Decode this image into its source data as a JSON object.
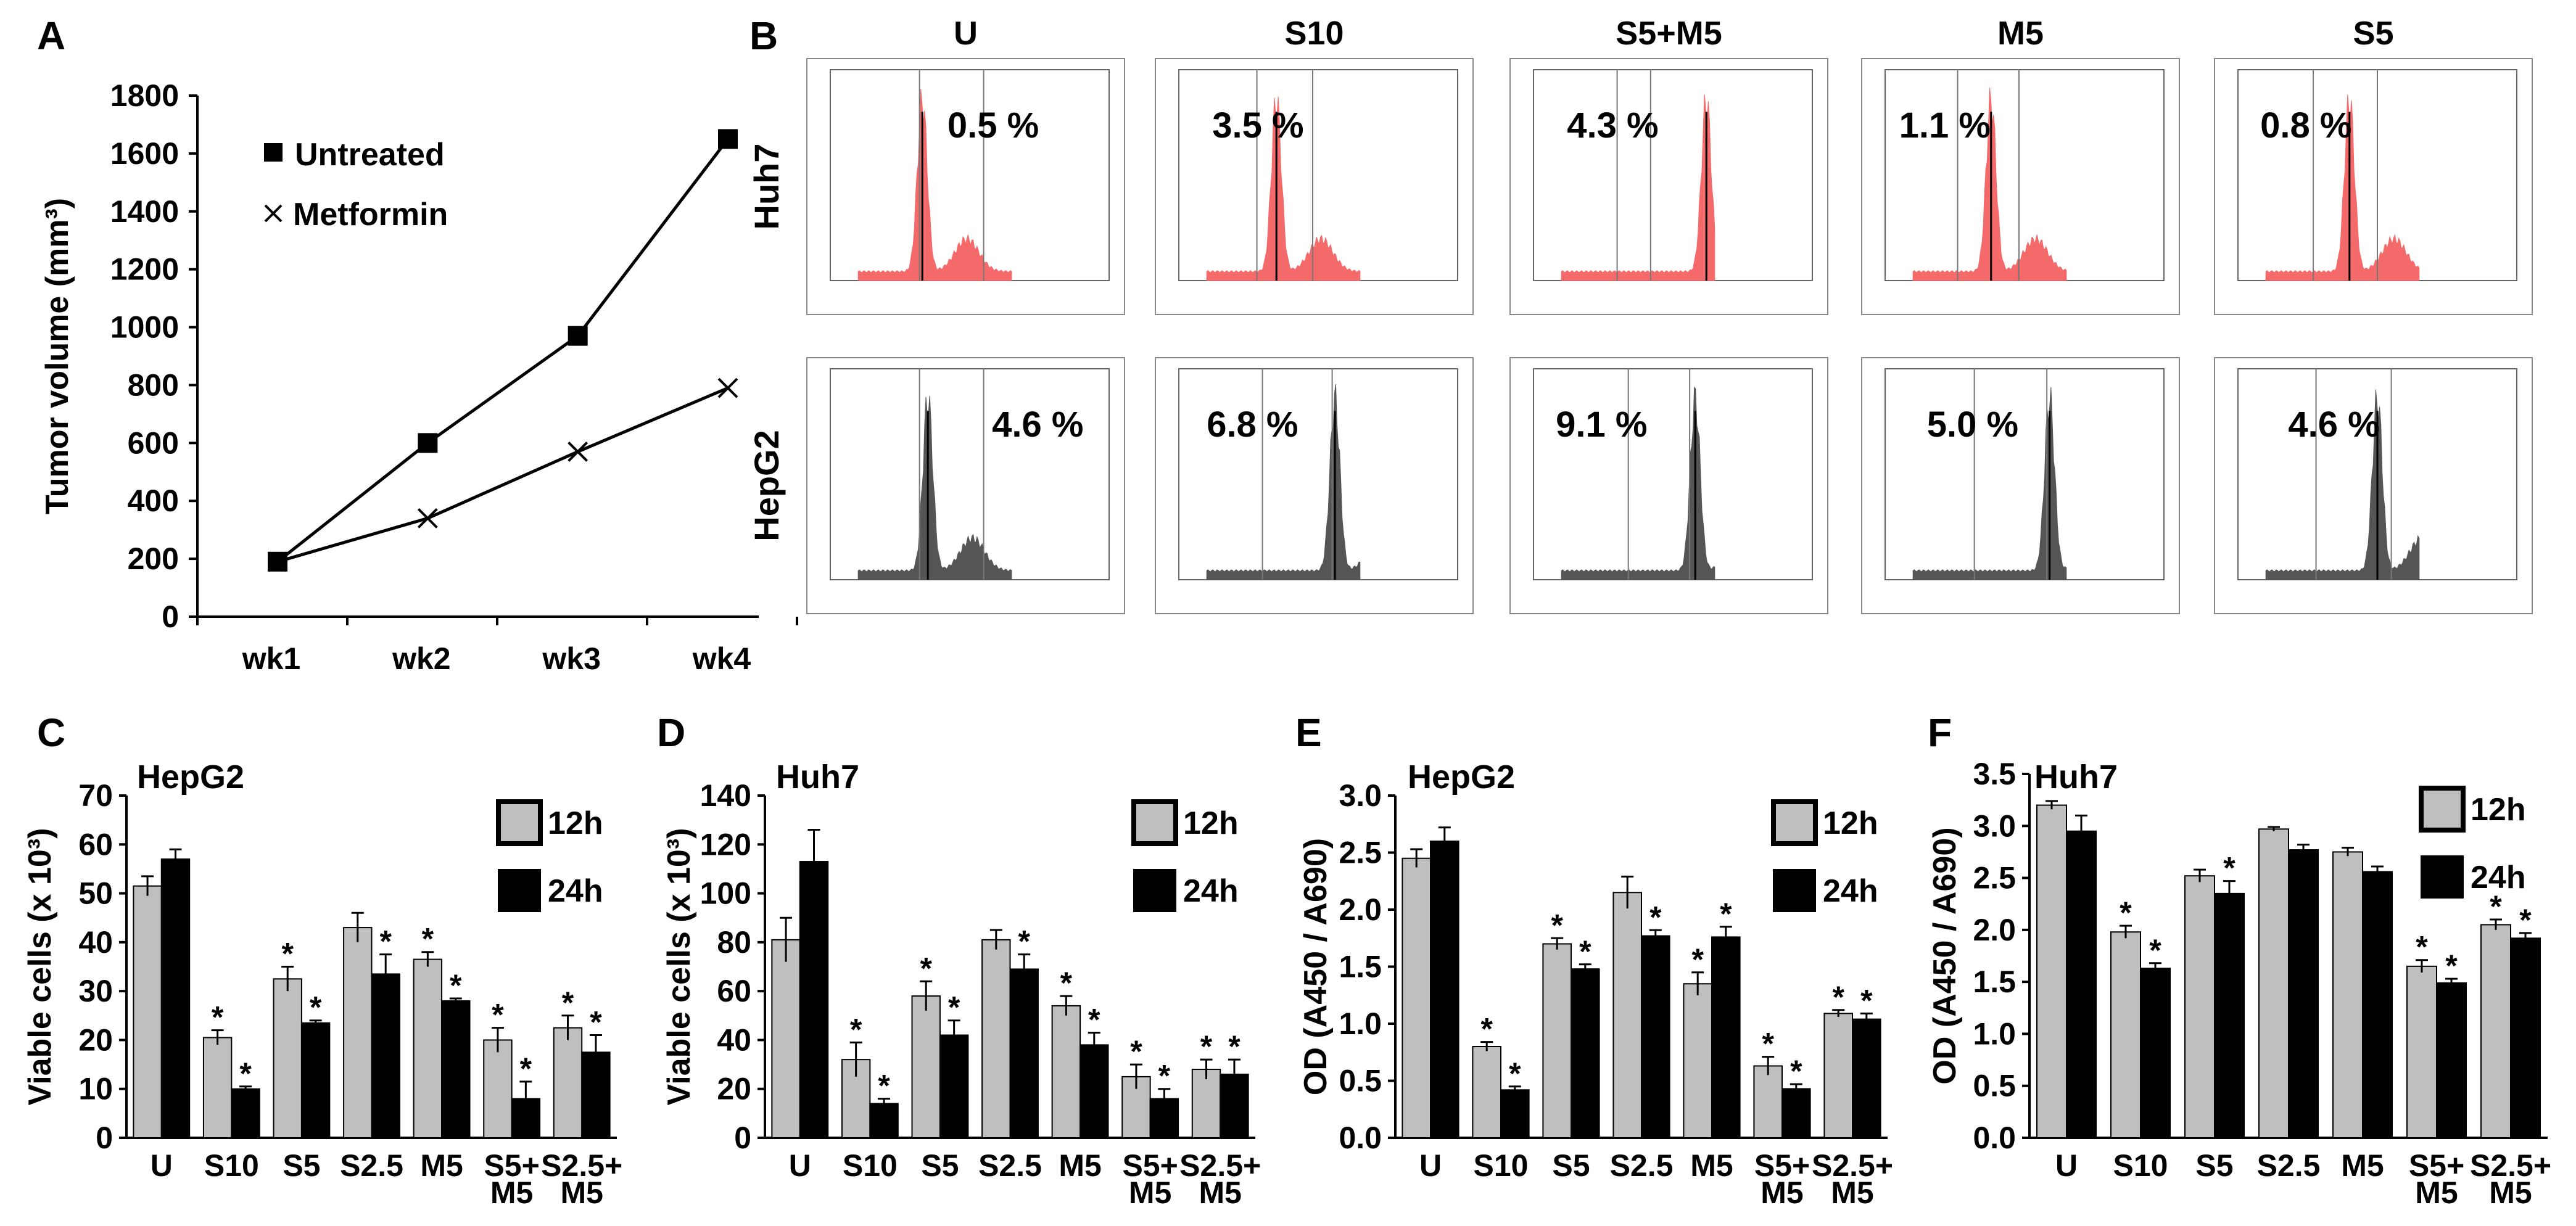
{
  "panel_labels": [
    "A",
    "B",
    "C",
    "D",
    "E",
    "F"
  ],
  "colors": {
    "gray": "#bfbfbf",
    "black": "#000000",
    "red": "#f46a6a",
    "histgray": "#555555"
  },
  "chart_data": [
    {
      "panel": "A",
      "type": "line",
      "title": "",
      "xlabel": "",
      "ylabel": "Tumor volume (mm³)",
      "categories": [
        "wk1",
        "wk2",
        "wk3",
        "wk4"
      ],
      "ylim": [
        0,
        1800
      ],
      "yticks": [
        "0",
        "200",
        "400",
        "600",
        "800",
        "1000",
        "1200",
        "1400",
        "1600",
        "1800"
      ],
      "legend_position": "top-left",
      "series": [
        {
          "name": "Untreated",
          "marker": "square",
          "values": [
            190,
            600,
            970,
            1650
          ]
        },
        {
          "name": "Metformin",
          "marker": "x",
          "values": [
            190,
            340,
            570,
            790
          ]
        }
      ]
    },
    {
      "panel": "B",
      "type": "histogram-grid",
      "columns": [
        "U",
        "S10",
        "S5+M5",
        "M5",
        "S5"
      ],
      "rows": [
        {
          "name": "Huh7",
          "color": "#f46a6a",
          "percents": [
            "0.5 %",
            "3.5 %",
            "4.3 %",
            "1.1 %",
            "0.8 %"
          ]
        },
        {
          "name": "HepG2",
          "color": "#555555",
          "percents": [
            "4.6 %",
            "6.8 %",
            "9.1 %",
            "5.0 %",
            "4.6 %"
          ]
        }
      ]
    },
    {
      "panel": "C",
      "type": "bar",
      "title": "HepG2",
      "ylabel": "Viable cells (x 10³)",
      "ylim": [
        0,
        70
      ],
      "yticks": [
        "0",
        "10",
        "20",
        "30",
        "40",
        "50",
        "60",
        "70"
      ],
      "categories": [
        [
          "U"
        ],
        [
          "S10"
        ],
        [
          "S5"
        ],
        [
          "S2.5"
        ],
        [
          "M5"
        ],
        [
          "S5+",
          "M5"
        ],
        [
          "S2.5+",
          "M5"
        ]
      ],
      "series": [
        {
          "name": "12h",
          "values": [
            51.5,
            20.5,
            32.5,
            43,
            36.5,
            20,
            22.5
          ],
          "errors": [
            2,
            1.5,
            2.5,
            3,
            1.5,
            2.5,
            2.5
          ],
          "sig": [
            false,
            true,
            true,
            false,
            true,
            true,
            true
          ]
        },
        {
          "name": "24h",
          "values": [
            57,
            10,
            23.5,
            33.5,
            28,
            8,
            17.5
          ],
          "errors": [
            2,
            0.5,
            0.5,
            4,
            0.5,
            3.5,
            3.5
          ],
          "sig": [
            false,
            true,
            true,
            true,
            true,
            true,
            true
          ]
        }
      ]
    },
    {
      "panel": "D",
      "type": "bar",
      "title": "Huh7",
      "ylabel": "Viable cells (x 10³)",
      "ylim": [
        0,
        140
      ],
      "yticks": [
        "0",
        "20",
        "40",
        "60",
        "80",
        "100",
        "120",
        "140"
      ],
      "categories": [
        [
          "U"
        ],
        [
          "S10"
        ],
        [
          "S5"
        ],
        [
          "S2.5"
        ],
        [
          "M5"
        ],
        [
          "S5+",
          "M5"
        ],
        [
          "S2.5+",
          "M5"
        ]
      ],
      "series": [
        {
          "name": "12h",
          "values": [
            81,
            32,
            58,
            81,
            54,
            25,
            28
          ],
          "errors": [
            9,
            7,
            6,
            4,
            4,
            5,
            4
          ],
          "sig": [
            false,
            true,
            true,
            false,
            true,
            true,
            true
          ]
        },
        {
          "name": "24h",
          "values": [
            113,
            14,
            42,
            69,
            38,
            16,
            26
          ],
          "errors": [
            13,
            2,
            6,
            6,
            5,
            4,
            6
          ],
          "sig": [
            false,
            true,
            true,
            true,
            true,
            true,
            true
          ]
        }
      ]
    },
    {
      "panel": "E",
      "type": "bar",
      "title": "HepG2",
      "ylabel": "OD (A450 / A690)",
      "ylim": [
        0,
        3
      ],
      "yticks": [
        "0.0",
        "0.5",
        "1.0",
        "1.5",
        "2.0",
        "2.5",
        "3.0"
      ],
      "categories": [
        [
          "U"
        ],
        [
          "S10"
        ],
        [
          "S5"
        ],
        [
          "S2.5"
        ],
        [
          "M5"
        ],
        [
          "S5+",
          "M5"
        ],
        [
          "S2.5+",
          "M5"
        ]
      ],
      "series": [
        {
          "name": "12h",
          "values": [
            2.45,
            0.8,
            1.7,
            2.15,
            1.35,
            0.63,
            1.09
          ],
          "errors": [
            0.08,
            0.04,
            0.05,
            0.14,
            0.1,
            0.08,
            0.03
          ],
          "sig": [
            false,
            true,
            true,
            false,
            true,
            true,
            true
          ]
        },
        {
          "name": "24h",
          "values": [
            2.6,
            0.42,
            1.48,
            1.77,
            1.76,
            0.43,
            1.04
          ],
          "errors": [
            0.12,
            0.03,
            0.04,
            0.05,
            0.09,
            0.04,
            0.05
          ],
          "sig": [
            false,
            true,
            true,
            true,
            true,
            true,
            true
          ]
        }
      ]
    },
    {
      "panel": "F",
      "type": "bar",
      "title": "Huh7",
      "ylabel": "OD (A450 / A690)",
      "ylim": [
        0,
        3.5
      ],
      "yticks": [
        "0.0",
        "0.5",
        "1.0",
        "1.5",
        "2.0",
        "2.5",
        "3.0",
        "3.5"
      ],
      "categories": [
        [
          "U"
        ],
        [
          "S10"
        ],
        [
          "S5"
        ],
        [
          "S2.5"
        ],
        [
          "M5"
        ],
        [
          "S5+",
          "M5"
        ],
        [
          "S2.5+",
          "M5"
        ]
      ],
      "series": [
        {
          "name": "12h",
          "values": [
            3.2,
            1.98,
            2.52,
            2.97,
            2.75,
            1.65,
            2.05
          ],
          "errors": [
            0.04,
            0.06,
            0.06,
            0.02,
            0.04,
            0.06,
            0.05
          ],
          "sig": [
            false,
            true,
            false,
            false,
            false,
            true,
            true
          ]
        },
        {
          "name": "24h",
          "values": [
            2.95,
            1.63,
            2.35,
            2.77,
            2.56,
            1.49,
            1.92
          ],
          "errors": [
            0.15,
            0.05,
            0.12,
            0.05,
            0.05,
            0.04,
            0.05
          ],
          "sig": [
            false,
            true,
            true,
            false,
            false,
            true,
            true
          ]
        }
      ]
    }
  ]
}
